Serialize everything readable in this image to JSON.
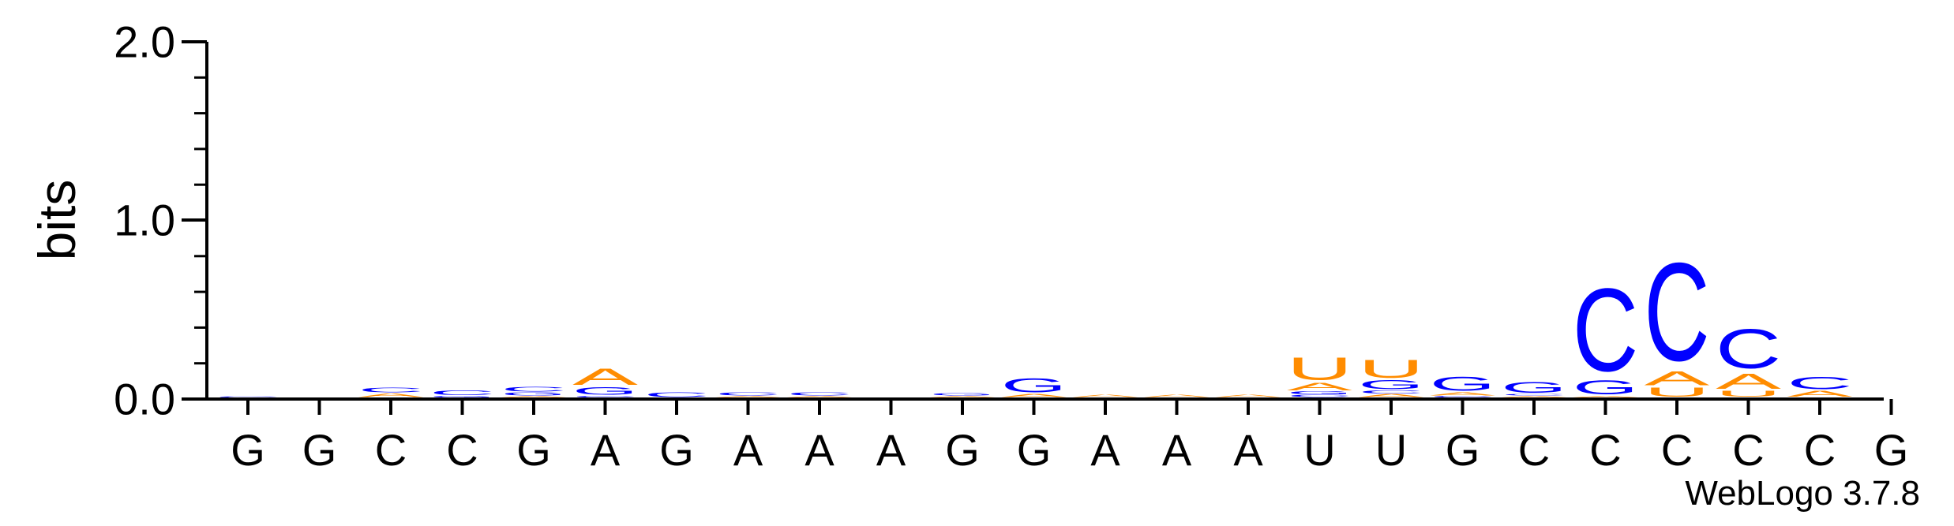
{
  "chart_data": {
    "type": "sequence-logo",
    "ylabel": "bits",
    "ylim": [
      0,
      2.0
    ],
    "yticks": [
      "2.0",
      "1.0",
      "0.0"
    ],
    "ytick_values": [
      2.0,
      1.0,
      0.0
    ],
    "colors": {
      "A": "#ff8c00",
      "U": "#ff8c00",
      "C": "#0000ff",
      "G": "#0000ff",
      "axis": "#000000"
    },
    "positions": [
      "G",
      "G",
      "C",
      "C",
      "G",
      "A",
      "G",
      "A",
      "A",
      "A",
      "G",
      "G",
      "A",
      "A",
      "A",
      "U",
      "U",
      "G",
      "C",
      "C",
      "C",
      "C",
      "C",
      "G"
    ],
    "stacks": [
      [
        [
          "C",
          0.005
        ]
      ],
      [],
      [
        [
          "A",
          0.025
        ],
        [
          "C",
          0.03
        ]
      ],
      [
        [
          "G",
          0.01
        ],
        [
          "C",
          0.03
        ]
      ],
      [
        [
          "A",
          0.01
        ],
        [
          "G",
          0.02
        ],
        [
          "C",
          0.03
        ]
      ],
      [
        [
          "C",
          0.01
        ],
        [
          "G",
          0.05
        ],
        [
          "A",
          0.11
        ]
      ],
      [
        [
          "C",
          0.03
        ]
      ],
      [
        [
          "A",
          0.01
        ],
        [
          "C",
          0.02
        ]
      ],
      [
        [
          "A",
          0.01
        ],
        [
          "C",
          0.02
        ]
      ],
      [],
      [
        [
          "A",
          0.01
        ],
        [
          "G",
          0.015
        ]
      ],
      [
        [
          "A",
          0.02
        ],
        [
          "G",
          0.09
        ]
      ],
      [
        [
          "A",
          0.015
        ]
      ],
      [
        [
          "A",
          0.015
        ]
      ],
      [
        [
          "A",
          0.015
        ]
      ],
      [
        [
          "C",
          0.015
        ],
        [
          "G",
          0.02
        ],
        [
          "A",
          0.05
        ],
        [
          "U",
          0.15
        ]
      ],
      [
        [
          "A",
          0.02
        ],
        [
          "C",
          0.02
        ],
        [
          "G",
          0.06
        ],
        [
          "U",
          0.12
        ]
      ],
      [
        [
          "C",
          0.01
        ],
        [
          "A",
          0.02
        ],
        [
          "G",
          0.09
        ]
      ],
      [
        [
          "A",
          0.01
        ],
        [
          "C",
          0.01
        ],
        [
          "G",
          0.07
        ]
      ],
      [
        [
          "A",
          0.01
        ],
        [
          "G",
          0.09
        ],
        [
          "C",
          0.55
        ]
      ],
      [
        [
          "U",
          0.06
        ],
        [
          "A",
          0.09
        ],
        [
          "C",
          0.65
        ]
      ],
      [
        [
          "U",
          0.04
        ],
        [
          "A",
          0.1
        ],
        [
          "C",
          0.26
        ]
      ],
      [
        [
          "A",
          0.04
        ],
        [
          "C",
          0.08
        ]
      ],
      []
    ],
    "footer": "WebLogo 3.7.8"
  }
}
